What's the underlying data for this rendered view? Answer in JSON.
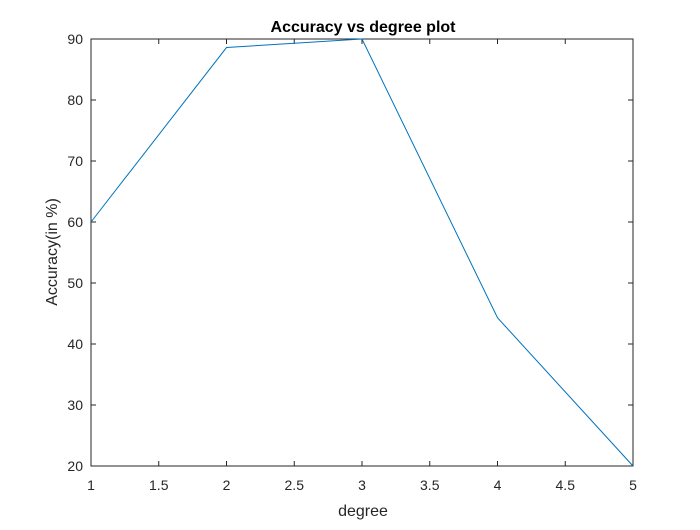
{
  "chart_data": {
    "type": "line",
    "title": "Accuracy vs degree plot",
    "xlabel": "degree",
    "ylabel": "Accuracy(in %)",
    "xlim": [
      1,
      5
    ],
    "ylim": [
      20,
      90
    ],
    "xticks": [
      "1",
      "1.5",
      "2",
      "2.5",
      "3",
      "3.5",
      "4",
      "4.5",
      "5"
    ],
    "yticks": [
      "20",
      "30",
      "40",
      "50",
      "60",
      "70",
      "80",
      "90"
    ],
    "grid": false,
    "series": [
      {
        "color": "#0072BD",
        "x": [
          1,
          2,
          3,
          4,
          5
        ],
        "y": [
          60,
          88.6,
          90,
          44.3,
          20
        ]
      }
    ]
  }
}
